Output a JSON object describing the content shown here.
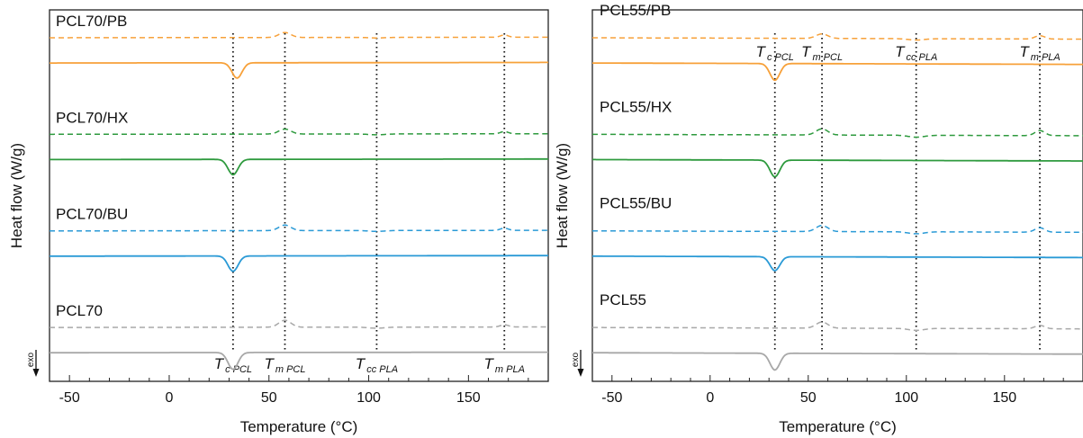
{
  "chart_data": [
    {
      "type": "line",
      "panel": "left",
      "xlabel": "Temperature (°C)",
      "ylabel": "Heat flow (W/g)",
      "exo_label": "exo",
      "xlim": [
        -60,
        190
      ],
      "xticks": [
        -50,
        0,
        50,
        100,
        150
      ],
      "grid": false,
      "markers": [
        {
          "main": "T",
          "sub": "c PCL",
          "x": 32
        },
        {
          "main": "T",
          "sub": "m PCL",
          "x": 58
        },
        {
          "main": "T",
          "sub": "cc PLA",
          "x": 104
        },
        {
          "main": "T",
          "sub": "m PLA",
          "x": 168
        }
      ],
      "series": [
        {
          "name": "PCL70/PB",
          "color": "#F7A13A",
          "baseline": 0.925,
          "tilt": -0.02,
          "heating": [
            {
              "x": 58,
              "a": 0.18,
              "w": 3
            },
            {
              "x": 104,
              "a": -0.02,
              "w": 4
            },
            {
              "x": 168,
              "a": 0.08,
              "w": 2
            }
          ],
          "cooling": [
            {
              "x": 34,
              "a": -0.55,
              "w": 2.5
            }
          ]
        },
        {
          "name": "PCL70/HX",
          "color": "#2E9A3E",
          "baseline": 0.665,
          "tilt": -0.02,
          "heating": [
            {
              "x": 58,
              "a": 0.18,
              "w": 3
            },
            {
              "x": 104,
              "a": -0.03,
              "w": 4
            },
            {
              "x": 168,
              "a": 0.08,
              "w": 2
            }
          ],
          "cooling": [
            {
              "x": 32,
              "a": -0.55,
              "w": 2.5
            }
          ]
        },
        {
          "name": "PCL70/BU",
          "color": "#2A9AD6",
          "baseline": 0.405,
          "tilt": -0.02,
          "heating": [
            {
              "x": 58,
              "a": 0.2,
              "w": 3
            },
            {
              "x": 104,
              "a": -0.03,
              "w": 4
            },
            {
              "x": 168,
              "a": 0.08,
              "w": 2
            }
          ],
          "cooling": [
            {
              "x": 32,
              "a": -0.55,
              "w": 2.5
            }
          ]
        },
        {
          "name": "PCL70",
          "color": "#A8A8A8",
          "baseline": 0.145,
          "tilt": -0.02,
          "heating": [
            {
              "x": 58,
              "a": 0.25,
              "w": 3
            },
            {
              "x": 104,
              "a": -0.04,
              "w": 4
            },
            {
              "x": 168,
              "a": 0.08,
              "w": 2
            }
          ],
          "cooling": [
            {
              "x": 32,
              "a": -0.6,
              "w": 2.5
            }
          ]
        }
      ]
    },
    {
      "type": "line",
      "panel": "right",
      "xlabel": "Temperature (°C)",
      "ylabel": "Heat flow (W/g)",
      "exo_label": "exo",
      "xlim": [
        -60,
        190
      ],
      "xticks": [
        -50,
        0,
        50,
        100,
        150
      ],
      "grid": false,
      "markers": [
        {
          "main": "T",
          "sub": "c PCL",
          "x": 33
        },
        {
          "main": "T",
          "sub": "m PCL",
          "x": 57
        },
        {
          "main": "T",
          "sub": "cc PLA",
          "x": 105
        },
        {
          "main": "T",
          "sub": "m PLA",
          "x": 168
        }
      ],
      "series": [
        {
          "name": "PCL55/PB",
          "color": "#F7A13A",
          "baseline": 0.925,
          "tilt": 0.05,
          "heating": [
            {
              "x": 57,
              "a": 0.16,
              "w": 3
            },
            {
              "x": 105,
              "a": -0.05,
              "w": 4
            },
            {
              "x": 168,
              "a": 0.12,
              "w": 2.5
            }
          ],
          "cooling": [
            {
              "x": 33,
              "a": -0.6,
              "w": 2.5
            }
          ]
        },
        {
          "name": "PCL55/HX",
          "color": "#2E9A3E",
          "baseline": 0.665,
          "tilt": 0.05,
          "heating": [
            {
              "x": 57,
              "a": 0.22,
              "w": 3
            },
            {
              "x": 105,
              "a": -0.07,
              "w": 4
            },
            {
              "x": 168,
              "a": 0.18,
              "w": 2.5
            }
          ],
          "cooling": [
            {
              "x": 33,
              "a": -0.6,
              "w": 2.5
            }
          ]
        },
        {
          "name": "PCL55/BU",
          "color": "#2A9AD6",
          "baseline": 0.405,
          "tilt": 0.05,
          "heating": [
            {
              "x": 57,
              "a": 0.22,
              "w": 3
            },
            {
              "x": 105,
              "a": -0.07,
              "w": 4
            },
            {
              "x": 168,
              "a": 0.16,
              "w": 2.5
            }
          ],
          "cooling": [
            {
              "x": 33,
              "a": -0.5,
              "w": 2.5
            }
          ]
        },
        {
          "name": "PCL55",
          "color": "#A8A8A8",
          "baseline": 0.145,
          "tilt": 0.05,
          "heating": [
            {
              "x": 57,
              "a": 0.22,
              "w": 3
            },
            {
              "x": 105,
              "a": -0.07,
              "w": 4
            },
            {
              "x": 168,
              "a": 0.12,
              "w": 2.5
            }
          ],
          "cooling": [
            {
              "x": 33,
              "a": -0.6,
              "w": 2.5
            }
          ]
        }
      ]
    }
  ]
}
